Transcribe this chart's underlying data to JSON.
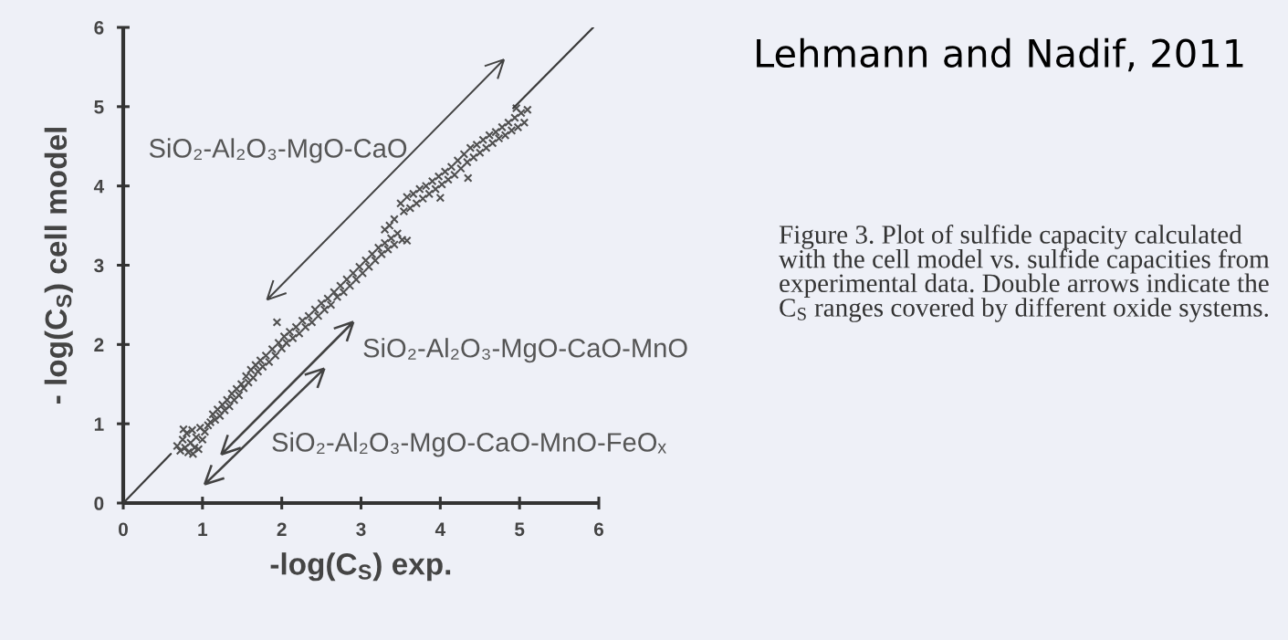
{
  "chart_data": {
    "type": "scatter",
    "xlabel": "-log(C$_{S}$) exp.",
    "ylabel": "- log(C$_{S}$) cell model",
    "xlim": [
      0,
      6
    ],
    "ylim": [
      0,
      6
    ],
    "xticks": [
      0,
      1,
      2,
      3,
      4,
      5,
      6
    ],
    "yticks": [
      0,
      1,
      2,
      3,
      4,
      5,
      6
    ],
    "annotations": [
      "Lehmann and Nadif, 2011",
      "Figure 3. Plot of sulfide capacity calculated with the cell model vs. sulfide capacities from experimental data. Double arrows indicate the C$_{S}$ ranges covered by different oxide systems.",
      "SiO₂-Al₂O₃-MgO-CaO",
      "SiO₂-Al₂O₃-MgO-CaO-MnO",
      "SiO₂-Al₂O₃-MgO-CaO-MnO-FeOₓ"
    ],
    "series": [
      {
        "color": "#505050",
        "marker": "cross",
        "x": [
          0.68,
          0.72,
          0.75,
          0.78,
          0.8,
          0.82,
          0.85,
          0.87,
          0.9,
          0.92,
          0.95,
          0.97,
          1.0,
          1.03,
          1.07,
          0.88,
          0.76,
          1.1,
          1.13,
          1.16,
          1.19,
          1.22,
          1.25,
          1.28,
          1.31,
          1.34,
          1.37,
          1.4,
          1.43,
          1.46,
          1.49,
          1.52,
          1.55,
          1.58,
          1.61,
          1.64,
          1.67,
          1.7,
          1.73,
          1.76,
          1.8,
          1.84,
          1.88,
          1.92,
          1.96,
          2.0,
          2.03,
          2.06,
          2.1,
          2.14,
          2.18,
          2.22,
          2.26,
          2.3,
          2.34,
          2.38,
          2.42,
          2.46,
          2.5,
          2.54,
          2.58,
          2.62,
          2.66,
          2.7,
          2.74,
          2.78,
          2.82,
          2.86,
          1.94,
          2.9,
          2.94,
          2.98,
          3.02,
          3.06,
          3.1,
          3.14,
          3.18,
          3.22,
          3.26,
          3.3,
          3.34,
          3.38,
          3.42,
          3.46,
          3.52,
          3.58,
          3.36,
          3.42,
          3.3,
          3.5,
          3.54,
          3.58,
          3.62,
          3.66,
          3.7,
          3.74,
          3.78,
          3.82,
          3.86,
          3.9,
          3.94,
          3.98,
          4.02,
          4.06,
          4.1,
          4.14,
          4.18,
          4.22,
          4.26,
          4.3,
          4.34,
          4.38,
          4.42,
          4.46,
          4.5,
          4.54,
          4.58,
          4.62,
          4.66,
          4.7,
          4.74,
          4.78,
          4.82,
          4.86,
          4.9,
          4.94,
          4.98,
          5.02,
          5.06,
          5.1,
          4.96,
          4.35,
          4.0
        ],
        "values": [
          0.72,
          0.66,
          0.8,
          0.7,
          0.88,
          0.64,
          0.76,
          0.92,
          0.7,
          0.83,
          0.68,
          0.95,
          0.8,
          0.9,
          0.98,
          0.62,
          0.93,
          1.02,
          1.12,
          1.05,
          1.18,
          1.1,
          1.24,
          1.17,
          1.3,
          1.22,
          1.38,
          1.3,
          1.44,
          1.36,
          1.5,
          1.45,
          1.6,
          1.52,
          1.68,
          1.58,
          1.74,
          1.66,
          1.8,
          1.72,
          1.86,
          1.78,
          1.94,
          1.86,
          2.02,
          1.95,
          2.1,
          2.02,
          2.16,
          2.08,
          2.22,
          2.14,
          2.3,
          2.22,
          2.36,
          2.28,
          2.44,
          2.36,
          2.52,
          2.44,
          2.58,
          2.5,
          2.66,
          2.6,
          2.74,
          2.66,
          2.82,
          2.74,
          2.28,
          2.9,
          2.82,
          2.98,
          2.9,
          3.06,
          2.98,
          3.14,
          3.06,
          3.22,
          3.14,
          3.28,
          3.2,
          3.34,
          3.26,
          3.4,
          3.32,
          3.31,
          3.5,
          3.58,
          3.45,
          3.78,
          3.68,
          3.86,
          3.72,
          3.9,
          3.78,
          3.96,
          3.84,
          4.0,
          3.9,
          4.06,
          3.96,
          4.12,
          4.02,
          4.18,
          4.08,
          4.24,
          4.14,
          4.32,
          4.22,
          4.4,
          4.3,
          4.48,
          4.36,
          4.52,
          4.42,
          4.58,
          4.48,
          4.64,
          4.54,
          4.68,
          4.6,
          4.74,
          4.64,
          4.8,
          4.7,
          4.86,
          4.74,
          4.92,
          4.8,
          4.96,
          4.98,
          4.1,
          3.85
        ]
      },
      {
        "type": "line",
        "color": "#3a3a3a",
        "x": [
          0,
          0.6,
          2.8,
          4.92,
          5.93
        ],
        "values": [
          0,
          0.62,
          null,
          4.98,
          6.0
        ]
      }
    ]
  }
}
